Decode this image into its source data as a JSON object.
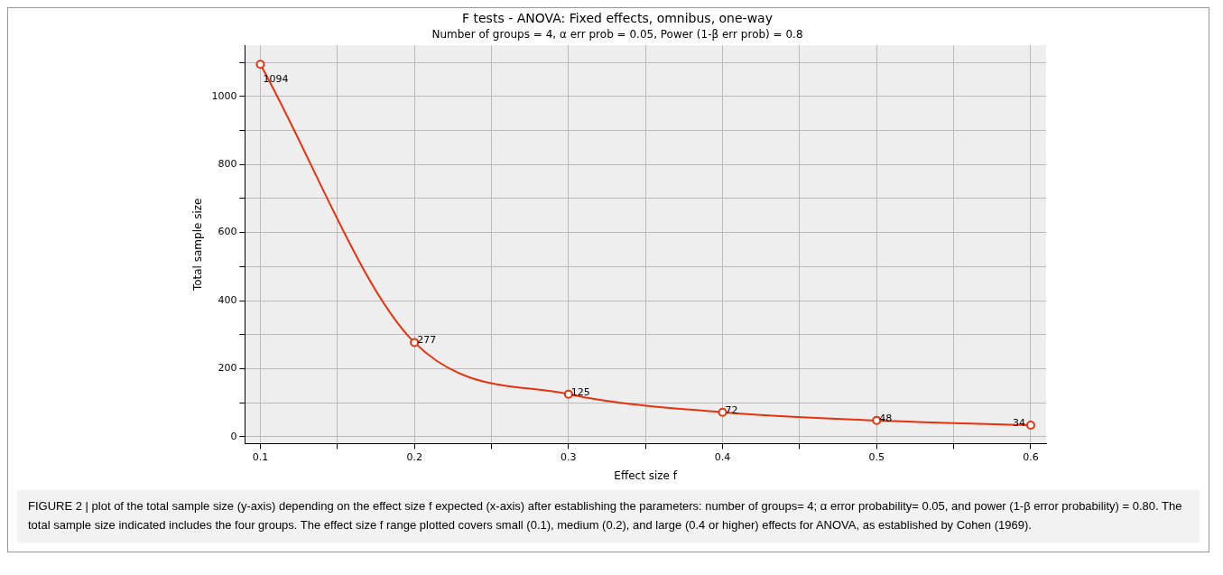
{
  "chart_data": {
    "type": "line",
    "title": "F tests - ANOVA: Fixed effects, omnibus, one-way",
    "subtitle": "Number of groups = 4, α err prob = 0.05, Power (1-β err prob) = 0.8",
    "xlabel": "Effect size f",
    "ylabel": "Total sample size",
    "x": [
      0.1,
      0.2,
      0.3,
      0.4,
      0.5,
      0.6
    ],
    "series": [
      {
        "color": "#e8320e",
        "values": [
          1094,
          277,
          125,
          72,
          48,
          34
        ]
      }
    ],
    "xlim": [
      0.09,
      0.61
    ],
    "ylim": [
      -20,
      1150
    ],
    "xticks": [
      0.1,
      {
        "value": 0.15,
        "label": null
      },
      0.2,
      {
        "value": 0.25,
        "label": null
      },
      0.3,
      {
        "value": 0.35,
        "label": null
      },
      0.4,
      {
        "value": 0.45,
        "label": null
      },
      0.5,
      {
        "value": 0.55,
        "label": null
      },
      0.6
    ],
    "yticks": [
      0,
      {
        "value": 100,
        "label": null
      },
      200,
      {
        "value": 300,
        "label": null
      },
      400,
      {
        "value": 500,
        "label": null
      },
      600,
      {
        "value": 700,
        "label": null
      },
      800,
      {
        "value": 900,
        "label": null
      },
      1000,
      {
        "value": 1100,
        "label": null
      }
    ],
    "grid": true,
    "marker": "circle",
    "line_style": "solid",
    "data_labels": true,
    "legend": false,
    "annotations": [
      "FIGURE 2 | plot of the total sample size (y-axis) depending on the effect size f expected (x-axis) after establishing the parameters: number of groups= 4; α error probability= 0.05, and power (1-β error probability) = 0.80. The total sample size indicated includes the four groups. The effect size f range plotted covers small (0.1), medium (0.2), and large (0.4 or higher) effects for ANOVA, as established by Cohen (1969)."
    ]
  }
}
